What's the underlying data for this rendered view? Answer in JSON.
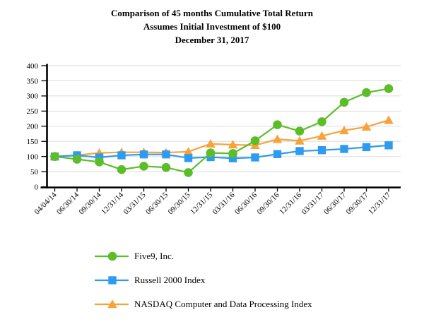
{
  "title": {
    "line1": "Comparison of 45 months Cumulative Total Return",
    "line2": "Assumes Initial Investment of $100",
    "line3": "December 31, 2017"
  },
  "chart_data": {
    "type": "line",
    "title": "Comparison of 45 months Cumulative Total Return Assumes Initial Investment of $100 December 31, 2017",
    "xlabel": "",
    "ylabel": "",
    "ylim": [
      0,
      400
    ],
    "ytick_step": 50,
    "ytick_labels": [
      "0",
      "50",
      "100",
      "150",
      "200",
      "250",
      "300",
      "350",
      "400"
    ],
    "grid": true,
    "legend_position": "bottom-left",
    "categories": [
      "04/04/14",
      "06/30/14",
      "09/30/14",
      "12/31/14",
      "03/31/15",
      "06/30/15",
      "09/30/15",
      "12/31/15",
      "03/31/16",
      "06/30/16",
      "09/30/16",
      "12/31/16",
      "03/31/17",
      "06/30/17",
      "09/30/17",
      "12/31/17"
    ],
    "series": [
      {
        "name": "Five9, Inc.",
        "marker": "circle",
        "color": "#5BBE29",
        "values": [
          100,
          91,
          82,
          57,
          68,
          64,
          47,
          112,
          110,
          152,
          205,
          184,
          215,
          279,
          311,
          324
        ]
      },
      {
        "name": "Russell 2000 Index",
        "marker": "square",
        "color": "#2E9BF0",
        "values": [
          100,
          104,
          97,
          104,
          107,
          107,
          95,
          98,
          94,
          97,
          108,
          118,
          121,
          125,
          131,
          137
        ]
      },
      {
        "name": "NASDAQ Computer and Data Processing Index",
        "marker": "triangle",
        "color": "#F9A23C",
        "values": [
          100,
          104,
          112,
          114,
          114,
          113,
          116,
          142,
          139,
          137,
          157,
          152,
          168,
          186,
          198,
          220
        ]
      }
    ]
  },
  "colors": {
    "gridline": "#DBDBDB",
    "axis": "#000000",
    "background": "#FFFFFF",
    "five9": "#5BBE29",
    "russell": "#2E9BF0",
    "nasdaq": "#F9A23C"
  }
}
